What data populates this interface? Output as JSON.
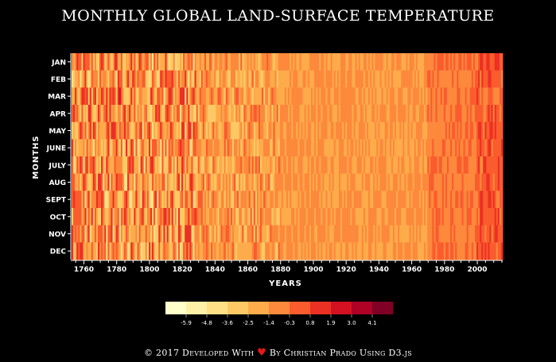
{
  "chart_data": {
    "type": "heatmap",
    "title": "MONTHLY GLOBAL LAND-SURFACE TEMPERATURE",
    "xlabel": "YEARS",
    "ylabel": "MONTHS",
    "y_categories": [
      "JAN",
      "FEB",
      "MAR",
      "APR",
      "MAY",
      "JUNE",
      "JULY",
      "AUG",
      "SEPT",
      "OCT",
      "NOV",
      "DEC"
    ],
    "x_range": [
      1753,
      2015
    ],
    "x_ticks": [
      1760,
      1780,
      1800,
      1820,
      1840,
      1860,
      1880,
      1900,
      1920,
      1940,
      1960,
      1980,
      2000
    ],
    "legend": {
      "colors": [
        "#ffffcc",
        "#fff0a8",
        "#fee087",
        "#fec965",
        "#feab4b",
        "#fd893c",
        "#fa5c2e",
        "#ec3023",
        "#d31121",
        "#af0225",
        "#800026"
      ],
      "tick_labels": [
        "-5.9",
        "-4.8",
        "-3.6",
        "-2.5",
        "-1.4",
        "-0.3",
        "0.8",
        "1.9",
        "3.0",
        "4.1"
      ],
      "placement": "bottom-center"
    }
  },
  "footer": {
    "prefix": "© 2017 Developed With",
    "heart": "♥",
    "suffix": "By Christian Prado Using D3.js"
  }
}
